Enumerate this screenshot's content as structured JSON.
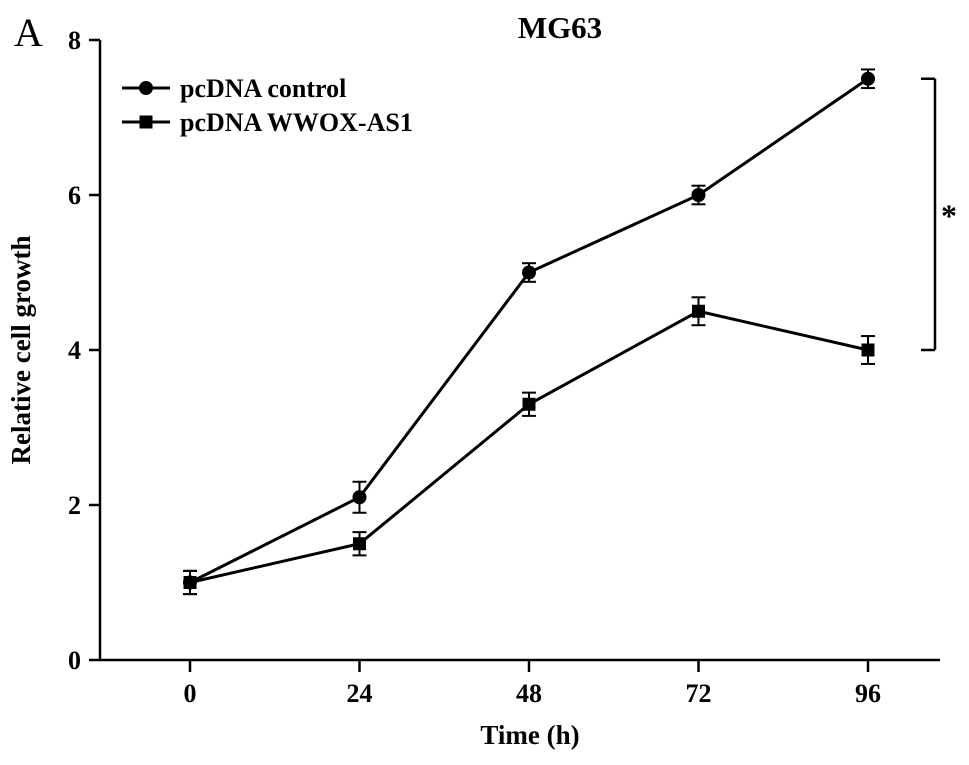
{
  "figure": {
    "panel_label": "A"
  },
  "chart_data": {
    "type": "line",
    "title": "MG63",
    "xlabel": "Time (h)",
    "ylabel": "Relative cell growth",
    "x": [
      0,
      24,
      48,
      72,
      96
    ],
    "x_tick_labels": [
      "0",
      "24",
      "48",
      "72",
      "96"
    ],
    "y_ticks": [
      0,
      2,
      4,
      6,
      8
    ],
    "xlim": [
      0,
      96
    ],
    "ylim": [
      0,
      8
    ],
    "grid": false,
    "legend_position": "top-left",
    "line_color": "#000000",
    "series": [
      {
        "name": "pcDNA control",
        "marker": "circle",
        "color": "#000000",
        "values": [
          1.0,
          2.1,
          5.0,
          6.0,
          7.5
        ],
        "errors": [
          0.15,
          0.2,
          0.12,
          0.12,
          0.12
        ]
      },
      {
        "name": "pcDNA WWOX-AS1",
        "marker": "square",
        "color": "#000000",
        "values": [
          1.0,
          1.5,
          3.3,
          4.5,
          4.0
        ],
        "errors": [
          0.15,
          0.15,
          0.15,
          0.18,
          0.18
        ]
      }
    ],
    "significance": {
      "label": "*",
      "compares": [
        "pcDNA control",
        "pcDNA WWOX-AS1"
      ],
      "at_x": 96
    }
  }
}
